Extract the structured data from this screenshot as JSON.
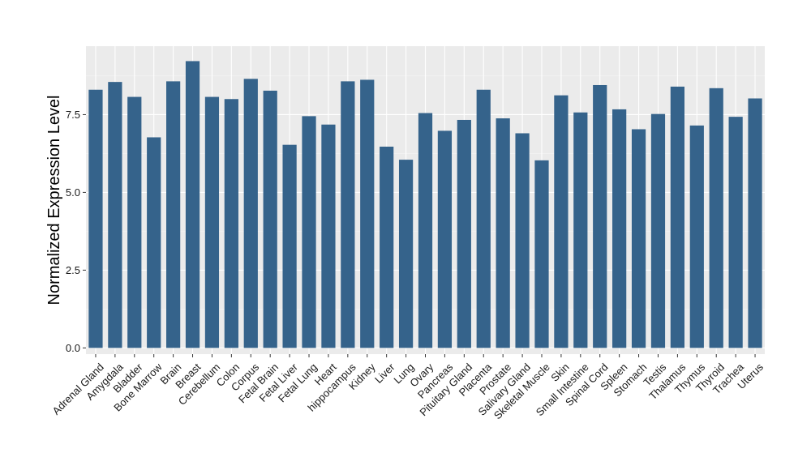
{
  "chart_data": {
    "type": "bar",
    "title": "",
    "xlabel": "",
    "ylabel": "Normalized Expression Level",
    "ylim": [
      -0.2,
      9.7
    ],
    "yticks": [
      0.0,
      2.5,
      5.0,
      7.5
    ],
    "ytick_labels": [
      "0.0",
      "2.5",
      "5.0",
      "7.5"
    ],
    "grid": true,
    "categories": [
      "Adrenal Gland",
      "Amygdala",
      "Bladder",
      "Bone Marrow",
      "Brain",
      "Breast",
      "Cerebellum",
      "Colon",
      "Corpus",
      "Fetal Brain",
      "Fetal Liver",
      "Fetal Lung",
      "Heart",
      "hippocampus",
      "Kidney",
      "Liver",
      "Lung",
      "Ovary",
      "Pancreas",
      "Pituitary Gland",
      "Placenta",
      "Prostate",
      "Salivary Gland",
      "Skeletal Muscle",
      "Skin",
      "Small Intestine",
      "Spinal Cord",
      "Spleen",
      "Stomach",
      "Testis",
      "Thalamus",
      "Thymus",
      "Thyroid",
      "Trachea",
      "Uterus"
    ],
    "values": [
      8.3,
      8.55,
      8.07,
      6.77,
      8.57,
      9.22,
      8.07,
      8.0,
      8.65,
      8.27,
      6.53,
      7.45,
      7.18,
      8.57,
      8.62,
      6.47,
      6.05,
      7.55,
      6.98,
      7.33,
      8.3,
      7.38,
      6.9,
      6.03,
      8.12,
      7.57,
      8.45,
      7.67,
      7.03,
      7.52,
      8.4,
      7.15,
      8.35,
      7.43,
      8.02
    ],
    "colors": {
      "bar": "#35638b",
      "panel": "#ebebeb",
      "grid_major": "#ffffff",
      "grid_minor": "#f5f5f5",
      "tick": "#333333"
    }
  }
}
